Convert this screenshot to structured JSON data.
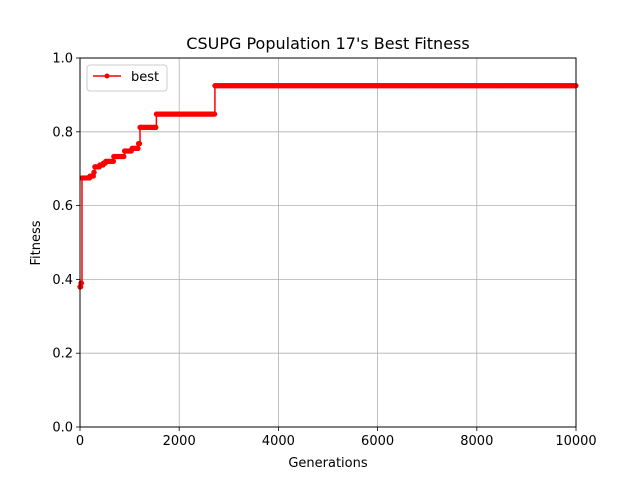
{
  "chart_data": {
    "type": "line",
    "title": "CSUPG Population 17's Best Fitness",
    "xlabel": "Generations",
    "ylabel": "Fitness",
    "xlim": [
      0,
      10000
    ],
    "ylim": [
      0.0,
      1.0
    ],
    "xticks": [
      "0",
      "2000",
      "4000",
      "6000",
      "8000",
      "10000"
    ],
    "xtick_values": [
      0,
      2000,
      4000,
      6000,
      8000,
      10000
    ],
    "yticks": [
      "0.0",
      "0.2",
      "0.4",
      "0.6",
      "0.8",
      "1.0"
    ],
    "ytick_values": [
      0.0,
      0.2,
      0.4,
      0.6,
      0.8,
      1.0
    ],
    "grid": true,
    "legend_position": "upper-left",
    "series": [
      {
        "name": "best",
        "color": "#ff0000",
        "marker": "circle",
        "steps": [
          {
            "x": 0,
            "y": 0.38
          },
          {
            "x": 20,
            "y": 0.39
          },
          {
            "x": 40,
            "y": 0.675
          },
          {
            "x": 200,
            "y": 0.68
          },
          {
            "x": 280,
            "y": 0.69
          },
          {
            "x": 300,
            "y": 0.705
          },
          {
            "x": 400,
            "y": 0.71
          },
          {
            "x": 470,
            "y": 0.715
          },
          {
            "x": 520,
            "y": 0.72
          },
          {
            "x": 680,
            "y": 0.733
          },
          {
            "x": 900,
            "y": 0.748
          },
          {
            "x": 1050,
            "y": 0.755
          },
          {
            "x": 1180,
            "y": 0.768
          },
          {
            "x": 1210,
            "y": 0.812
          },
          {
            "x": 1540,
            "y": 0.848
          },
          {
            "x": 2720,
            "y": 0.925
          },
          {
            "x": 10000,
            "y": 0.925
          }
        ]
      }
    ]
  }
}
